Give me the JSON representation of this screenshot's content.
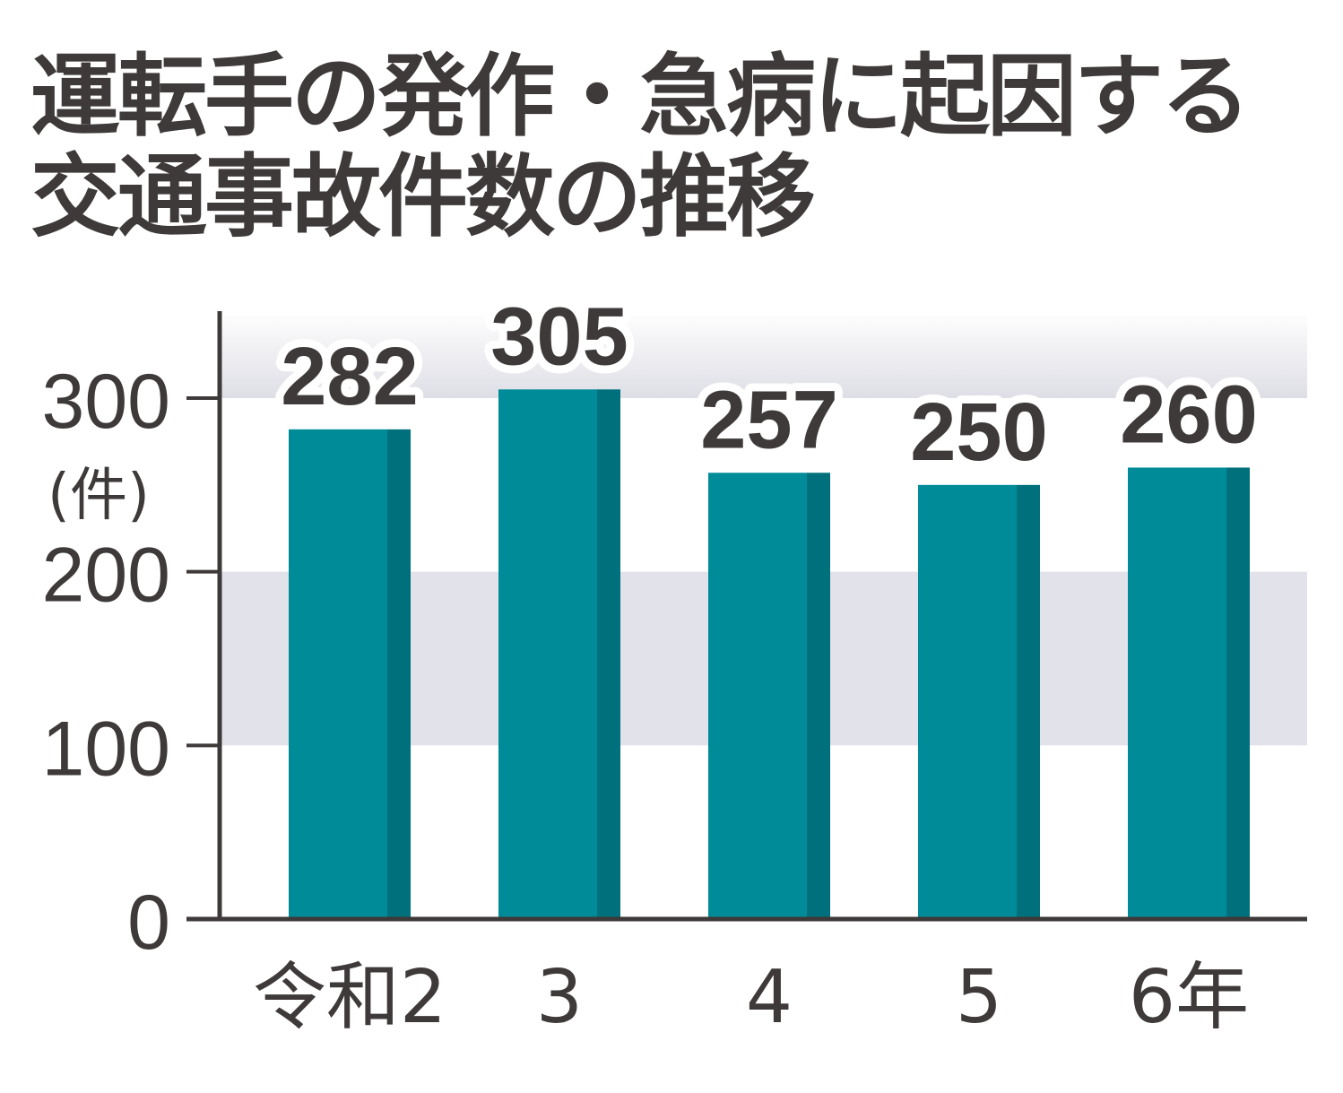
{
  "chart_data": {
    "type": "bar",
    "title_lines": [
      "運転手の発作・急病に起因する",
      "交通事故件数の推移"
    ],
    "categories": [
      "令和2",
      "3",
      "4",
      "5",
      "6年"
    ],
    "values": [
      282,
      305,
      257,
      250,
      260
    ],
    "ylabel": "(件)",
    "yticks": [
      "0",
      "100",
      "200",
      "300"
    ],
    "ylim": [
      0,
      350
    ],
    "grid": "alternating bands",
    "colors": {
      "bar": "#008b98",
      "bar_shade": "#00707c",
      "band": "#e2e2ea",
      "axis": "#3e3a39",
      "text": "#3e3a39"
    }
  }
}
